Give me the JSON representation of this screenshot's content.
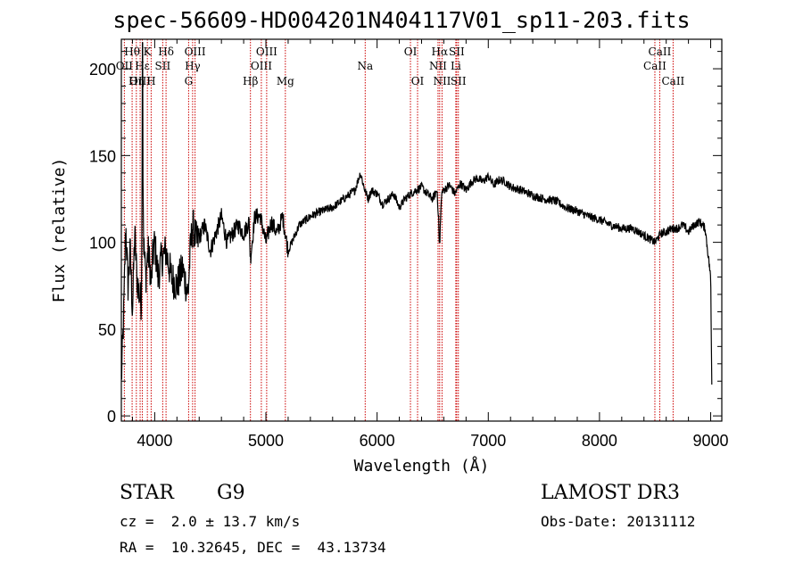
{
  "chart_data": {
    "type": "line",
    "title": "spec-56609-HD004201N404117V01_sp11-203.fits",
    "xlabel": "Wavelength (Å)",
    "ylabel": "Flux (relative)",
    "xlim": [
      3700,
      9100
    ],
    "ylim": [
      -3,
      217
    ],
    "x_ticks": [
      4000,
      5000,
      6000,
      7000,
      8000,
      9000
    ],
    "y_ticks": [
      0,
      50,
      100,
      150,
      200
    ],
    "series": [
      {
        "name": "flux",
        "x": [
          3700,
          3720,
          3740,
          3760,
          3780,
          3800,
          3820,
          3840,
          3860,
          3880,
          3890,
          3900,
          3920,
          3940,
          3960,
          3970,
          3980,
          4000,
          4030,
          4060,
          4100,
          4150,
          4200,
          4250,
          4300,
          4320,
          4340,
          4380,
          4450,
          4500,
          4550,
          4600,
          4650,
          4700,
          4750,
          4800,
          4850,
          4860,
          4900,
          4950,
          5000,
          5050,
          5100,
          5150,
          5200,
          5300,
          5400,
          5500,
          5600,
          5700,
          5800,
          5850,
          5890,
          5920,
          5950,
          6000,
          6050,
          6100,
          6150,
          6200,
          6250,
          6300,
          6350,
          6400,
          6450,
          6500,
          6540,
          6563,
          6580,
          6600,
          6650,
          6700,
          6750,
          6800,
          6850,
          6900,
          6950,
          7000,
          7050,
          7100,
          7150,
          7200,
          7300,
          7400,
          7500,
          7600,
          7700,
          7800,
          7900,
          8000,
          8100,
          8200,
          8300,
          8400,
          8500,
          8550,
          8600,
          8650,
          8700,
          8750,
          8800,
          8850,
          8900,
          8950,
          9000,
          9010
        ],
        "values": [
          20,
          55,
          110,
          75,
          95,
          60,
          105,
          80,
          70,
          65,
          180,
          100,
          80,
          95,
          85,
          75,
          90,
          100,
          80,
          90,
          95,
          80,
          75,
          85,
          70,
          95,
          110,
          100,
          110,
          95,
          105,
          115,
          100,
          105,
          110,
          105,
          112,
          90,
          115,
          115,
          100,
          112,
          105,
          115,
          95,
          110,
          115,
          118,
          120,
          125,
          130,
          140,
          130,
          125,
          130,
          128,
          122,
          125,
          128,
          120,
          125,
          128,
          130,
          132,
          128,
          125,
          130,
          100,
          128,
          130,
          133,
          128,
          134,
          130,
          135,
          137,
          135,
          138,
          133,
          136,
          135,
          132,
          130,
          127,
          125,
          124,
          120,
          118,
          115,
          113,
          110,
          108,
          108,
          104,
          100,
          105,
          106,
          108,
          108,
          110,
          106,
          110,
          112,
          108,
          80,
          18
        ]
      }
    ],
    "spectral_lines": [
      {
        "name": "Hθ",
        "wavelength": 3797,
        "row": 1
      },
      {
        "name": "OII",
        "wavelength": 3727,
        "row": 2
      },
      {
        "name": "OIII",
        "wavelength": 3869,
        "row": 3
      },
      {
        "name": "Hη",
        "wavelength": 3835,
        "row": 3
      },
      {
        "name": "K",
        "wavelength": 3934,
        "row": 1
      },
      {
        "name": "Hε",
        "wavelength": 3889,
        "row": 2
      },
      {
        "name": "H",
        "wavelength": 3968,
        "row": 3
      },
      {
        "name": "Hδ",
        "wavelength": 4102,
        "row": 1
      },
      {
        "name": "SII",
        "wavelength": 4072,
        "row": 2
      },
      {
        "name": "OIII",
        "wavelength": 4363,
        "row": 1
      },
      {
        "name": "Hγ",
        "wavelength": 4341,
        "row": 2
      },
      {
        "name": "G",
        "wavelength": 4305,
        "row": 3
      },
      {
        "name": "Hβ",
        "wavelength": 4861,
        "row": 3
      },
      {
        "name": "OIII",
        "wavelength": 5007,
        "row": 1
      },
      {
        "name": "OIII",
        "wavelength": 4959,
        "row": 2
      },
      {
        "name": "Mg",
        "wavelength": 5175,
        "row": 3
      },
      {
        "name": "Na",
        "wavelength": 5893,
        "row": 2
      },
      {
        "name": "OI",
        "wavelength": 6300,
        "row": 1
      },
      {
        "name": "OI",
        "wavelength": 6364,
        "row": 3
      },
      {
        "name": "Hα",
        "wavelength": 6563,
        "row": 1
      },
      {
        "name": "NII",
        "wavelength": 6548,
        "row": 2
      },
      {
        "name": "NII",
        "wavelength": 6584,
        "row": 3
      },
      {
        "name": "SII",
        "wavelength": 6716,
        "row": 1
      },
      {
        "name": "Li",
        "wavelength": 6708,
        "row": 2
      },
      {
        "name": "SII",
        "wavelength": 6731,
        "row": 3
      },
      {
        "name": "CaII",
        "wavelength": 8542,
        "row": 1
      },
      {
        "name": "CaII",
        "wavelength": 8498,
        "row": 2
      },
      {
        "name": "CaII",
        "wavelength": 8662,
        "row": 3
      }
    ]
  },
  "info": {
    "object_class": "STAR",
    "subclass": "G9",
    "survey": "LAMOST DR3",
    "redshift_text": "cz =  2.0 ± 13.7 km/s",
    "obs_date": "Obs-Date: 20131112",
    "coords": "RA =  10.32645, DEC =  43.13734"
  },
  "colors": {
    "axes": "#000000",
    "spectrum": "#000000",
    "line_marker": "#cc0000",
    "background": "#ffffff"
  }
}
